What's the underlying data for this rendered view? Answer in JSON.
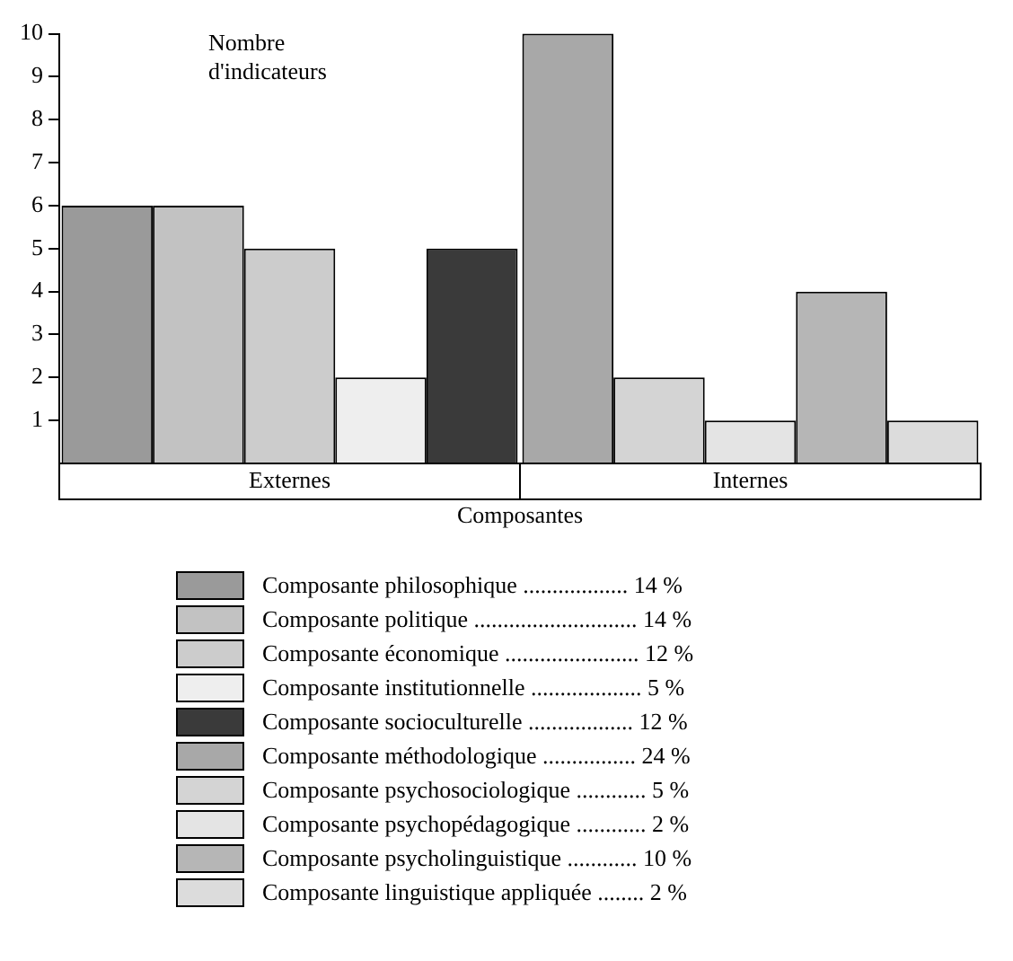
{
  "chart_data": {
    "type": "bar",
    "xlabel": "Composantes",
    "ylabel": "Nombre d'indicateurs",
    "categories": [
      "Externes",
      "Internes"
    ],
    "ylim": [
      0,
      10
    ],
    "yticks": [
      1,
      2,
      3,
      4,
      5,
      6,
      7,
      8,
      9,
      10
    ],
    "grid": false,
    "legend": "bottom",
    "series": [
      {
        "name": "Composante philosophique .................. 14 %",
        "color": "#9a9a9a",
        "values": [
          6,
          null
        ]
      },
      {
        "name": "Composante politique ............................ 14 %",
        "color": "#c2c2c2",
        "values": [
          6,
          null
        ]
      },
      {
        "name": "Composante économique ....................... 12 %",
        "color": "#cccccc",
        "values": [
          5,
          null
        ]
      },
      {
        "name": "Composante institutionnelle ................... 5 %",
        "color": "#eeeeee",
        "values": [
          2,
          null
        ]
      },
      {
        "name": "Composante socioculturelle .................. 12 %",
        "color": "#3a3a3a",
        "values": [
          5,
          null
        ]
      },
      {
        "name": "Composante méthodologique ................ 24 %",
        "color": "#a8a8a8",
        "values": [
          null,
          10
        ]
      },
      {
        "name": "Composante psychosociologique ............ 5 %",
        "color": "#d4d4d4",
        "values": [
          null,
          2
        ]
      },
      {
        "name": "Composante psychopédagogique ............ 2 %",
        "color": "#e4e4e4",
        "values": [
          null,
          1
        ]
      },
      {
        "name": "Composante psycholinguistique ............ 10 %",
        "color": "#b6b6b6",
        "values": [
          null,
          4
        ]
      },
      {
        "name": "Composante linguistique appliquée ........ 2 %",
        "color": "#dcdcdc",
        "values": [
          null,
          1
        ]
      }
    ]
  }
}
